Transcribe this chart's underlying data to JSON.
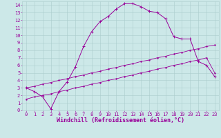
{
  "bg_color": "#cce8e8",
  "grid_color": "#aacccc",
  "line_color": "#990099",
  "xlabel": "Windchill (Refroidissement éolien,°C)",
  "xlabel_color": "#990099",
  "xlim": [
    -0.5,
    23.5
  ],
  "ylim": [
    0,
    14.5
  ],
  "xticks": [
    0,
    1,
    2,
    3,
    4,
    5,
    6,
    7,
    8,
    9,
    10,
    11,
    12,
    13,
    14,
    15,
    16,
    17,
    18,
    19,
    20,
    21,
    22,
    23
  ],
  "yticks": [
    0,
    1,
    2,
    3,
    4,
    5,
    6,
    7,
    8,
    9,
    10,
    11,
    12,
    13,
    14
  ],
  "line1_x": [
    0,
    1,
    2,
    3,
    4,
    5,
    6,
    7,
    8,
    9,
    10,
    11,
    12,
    13,
    14,
    15,
    16,
    17,
    18,
    19,
    20,
    21,
    22,
    23
  ],
  "line1_y": [
    3.0,
    2.5,
    1.8,
    0.2,
    2.5,
    3.8,
    5.8,
    8.5,
    10.5,
    11.8,
    12.5,
    13.5,
    14.2,
    14.2,
    13.8,
    13.2,
    13.0,
    12.2,
    9.8,
    9.5,
    9.5,
    6.5,
    6.0,
    4.5
  ],
  "line2_x": [
    0,
    1,
    2,
    3,
    4,
    5,
    6,
    7,
    8,
    9,
    10,
    11,
    12,
    13,
    14,
    15,
    16,
    17,
    18,
    19,
    20,
    21,
    22,
    23
  ],
  "line2_y": [
    3.0,
    3.2,
    3.5,
    3.7,
    4.0,
    4.2,
    4.5,
    4.7,
    5.0,
    5.2,
    5.5,
    5.7,
    6.0,
    6.2,
    6.5,
    6.7,
    7.0,
    7.2,
    7.5,
    7.7,
    8.0,
    8.2,
    8.5,
    8.7
  ],
  "line3_x": [
    0,
    1,
    2,
    3,
    4,
    5,
    6,
    7,
    8,
    9,
    10,
    11,
    12,
    13,
    14,
    15,
    16,
    17,
    18,
    19,
    20,
    21,
    22,
    23
  ],
  "line3_y": [
    1.5,
    1.8,
    2.0,
    2.2,
    2.5,
    2.7,
    3.0,
    3.2,
    3.5,
    3.7,
    4.0,
    4.2,
    4.5,
    4.7,
    5.0,
    5.2,
    5.5,
    5.7,
    6.0,
    6.2,
    6.5,
    6.7,
    7.0,
    5.0
  ],
  "tick_fontsize": 5,
  "xlabel_fontsize": 6
}
